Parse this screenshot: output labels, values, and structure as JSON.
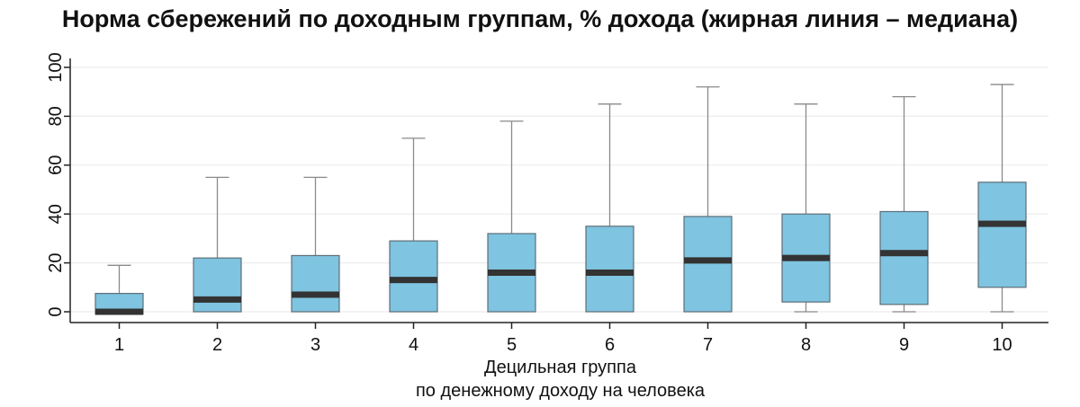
{
  "chart_data": {
    "type": "boxplot",
    "title": "Норма сбережений по доходным группам, % дохода (жирная линия – медиана)",
    "xlabel": "Децильная группа",
    "xlabel_line2": "по денежному доходу на человека",
    "ylabel": "",
    "ylim": [
      0,
      100
    ],
    "yticks": [
      "0",
      "20",
      "40",
      "60",
      "80",
      "100"
    ],
    "categories": [
      "1",
      "2",
      "3",
      "4",
      "5",
      "6",
      "7",
      "8",
      "9",
      "10"
    ],
    "boxes": [
      {
        "category": "1",
        "whisker_low": -1,
        "q1": -1,
        "median": 0,
        "q3": 7.5,
        "whisker_high": 19
      },
      {
        "category": "2",
        "whisker_low": 0,
        "q1": 0,
        "median": 5,
        "q3": 22,
        "whisker_high": 55
      },
      {
        "category": "3",
        "whisker_low": 0,
        "q1": 0,
        "median": 7,
        "q3": 23,
        "whisker_high": 55
      },
      {
        "category": "4",
        "whisker_low": 0,
        "q1": 0,
        "median": 13,
        "q3": 29,
        "whisker_high": 71
      },
      {
        "category": "5",
        "whisker_low": 0,
        "q1": 0,
        "median": 16,
        "q3": 32,
        "whisker_high": 78
      },
      {
        "category": "6",
        "whisker_low": 0,
        "q1": 0,
        "median": 16,
        "q3": 35,
        "whisker_high": 85
      },
      {
        "category": "7",
        "whisker_low": 0,
        "q1": 0,
        "median": 21,
        "q3": 39,
        "whisker_high": 92
      },
      {
        "category": "8",
        "whisker_low": 0,
        "q1": 4,
        "median": 22,
        "q3": 40,
        "whisker_high": 85
      },
      {
        "category": "9",
        "whisker_low": 0,
        "q1": 3,
        "median": 24,
        "q3": 41,
        "whisker_high": 88
      },
      {
        "category": "10",
        "whisker_low": 0,
        "q1": 10,
        "median": 36,
        "q3": 53,
        "whisker_high": 93
      }
    ],
    "grid": true,
    "legend": "none",
    "box_color": "#7fc4e0",
    "box_stroke": "#5e6e78",
    "median_color": "#333333",
    "whisker_color": "#8a8a8a",
    "grid_color": "#ececec",
    "axis_color": "#222222"
  }
}
